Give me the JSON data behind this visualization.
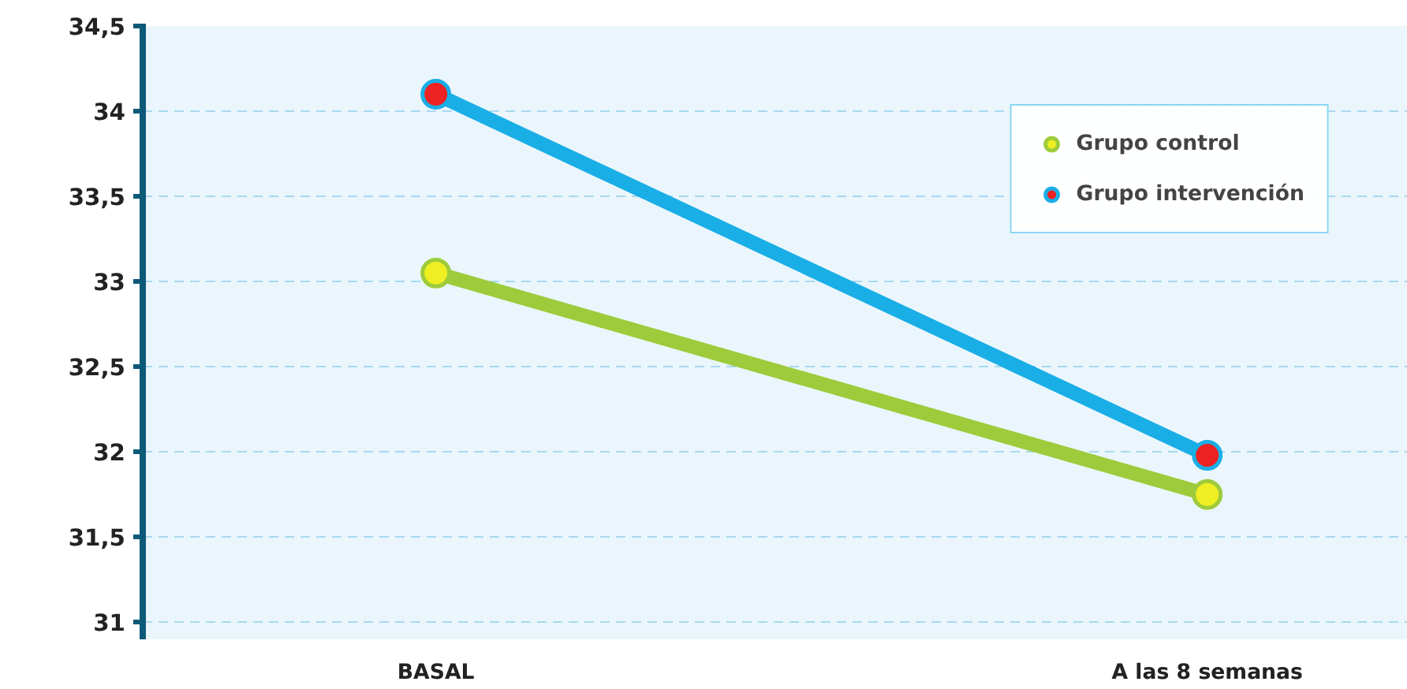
{
  "chart_data": {
    "type": "line",
    "categories": [
      "BASAL",
      "A las 8 semanas"
    ],
    "series": [
      {
        "name": "Grupo control",
        "color": "#9dcb3b",
        "values": [
          33.05,
          31.75
        ]
      },
      {
        "name": "Grupo intervención",
        "color": "#1aaee6",
        "values": [
          34.1,
          31.98
        ]
      }
    ],
    "ylim": [
      30.9,
      34.5
    ],
    "yticks": [
      31,
      {
        "value": 31.5,
        "label": "31,5"
      },
      32,
      {
        "value": 32.5,
        "label": "32,5"
      },
      33,
      {
        "value": 33.5,
        "label": "33,5"
      },
      34,
      {
        "value": 34.5,
        "label": "34,5"
      }
    ],
    "grid": "y",
    "legend": "top right",
    "marker": "circle",
    "line_style": "solid"
  }
}
